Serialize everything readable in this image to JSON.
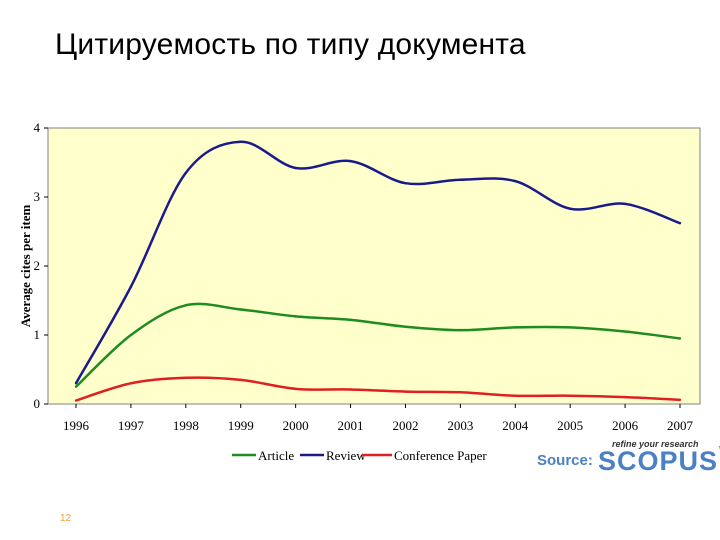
{
  "page": {
    "title": "Цитируемость по типу документа",
    "page_number": "12",
    "source_label": "Source:",
    "logo_tagline": "refine your research",
    "logo_text": "SCOPUS"
  },
  "colors": {
    "plot_background": "#ffffcc",
    "article": "#1e8c1e",
    "review": "#1a1a8c",
    "conference": "#e02020",
    "accent": "#4a80c4"
  },
  "chart_data": {
    "type": "line",
    "title": "",
    "xlabel": "",
    "ylabel": "Average cites per item",
    "x": [
      "1996",
      "1997",
      "1998",
      "1999",
      "2000",
      "2001",
      "2002",
      "2003",
      "2004",
      "2005",
      "2006",
      "2007"
    ],
    "ylim": [
      0,
      4
    ],
    "yticks": [
      "0",
      "1",
      "2",
      "3",
      "4"
    ],
    "grid": false,
    "legend_position": "bottom",
    "series": [
      {
        "name": "Article",
        "color": "#1e8c1e",
        "values": [
          0.25,
          1.0,
          1.43,
          1.37,
          1.27,
          1.22,
          1.12,
          1.07,
          1.11,
          1.11,
          1.05,
          0.95
        ]
      },
      {
        "name": "Review",
        "color": "#1a1a8c",
        "values": [
          0.3,
          1.7,
          3.35,
          3.8,
          3.42,
          3.52,
          3.2,
          3.25,
          3.23,
          2.83,
          2.9,
          2.62
        ]
      },
      {
        "name": "Conference Paper",
        "color": "#e02020",
        "values": [
          0.05,
          0.3,
          0.38,
          0.35,
          0.22,
          0.21,
          0.18,
          0.17,
          0.12,
          0.12,
          0.1,
          0.06
        ]
      }
    ]
  }
}
